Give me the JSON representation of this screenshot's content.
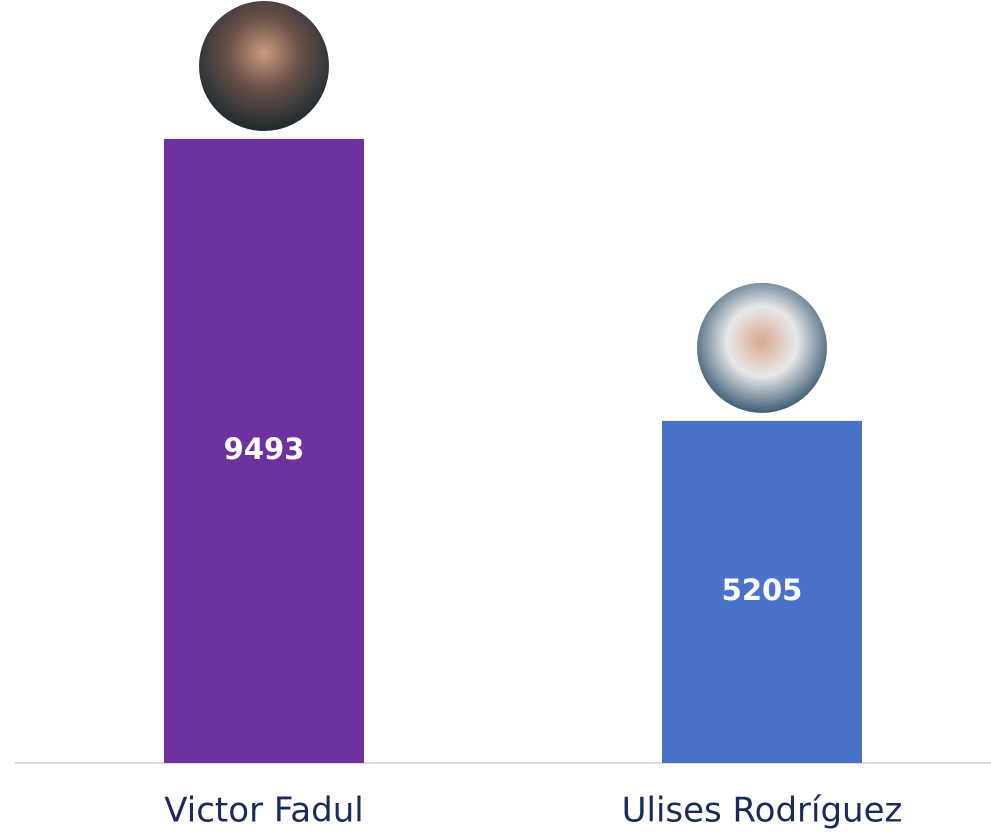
{
  "chart_data": {
    "type": "bar",
    "categories": [
      "Victor Fadul",
      "Ulises Rodríguez"
    ],
    "values": [
      9493,
      5205
    ],
    "colors": [
      "#6d31a0",
      "#4a72c8"
    ]
  }
}
